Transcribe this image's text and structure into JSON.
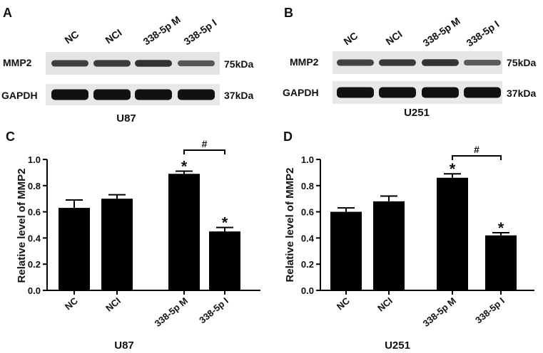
{
  "panels": {
    "a": {
      "letter": "A",
      "lanes": [
        "NC",
        "NCI",
        "338-5p M",
        "338-5p I"
      ],
      "rows": [
        {
          "protein": "MMP2",
          "size": "75kDa",
          "intensity": [
            0.62,
            0.66,
            0.72,
            0.45
          ]
        },
        {
          "protein": "GAPDH",
          "size": "37kDa",
          "intensity": [
            0.95,
            0.95,
            0.95,
            0.95
          ]
        }
      ],
      "cell_line": "U87"
    },
    "b": {
      "letter": "B",
      "lanes": [
        "NC",
        "NCI",
        "338-5p M",
        "338-5p I"
      ],
      "rows": [
        {
          "protein": "MMP2",
          "size": "75kDa",
          "intensity": [
            0.6,
            0.66,
            0.7,
            0.42
          ]
        },
        {
          "protein": "GAPDH",
          "size": "37kDa",
          "intensity": [
            0.95,
            0.95,
            0.95,
            0.95
          ]
        }
      ],
      "cell_line": "U251"
    },
    "c": {
      "letter": "C"
    },
    "d": {
      "letter": "D"
    }
  },
  "chart_data": [
    {
      "type": "bar",
      "categories": [
        "NC",
        "NCI",
        "338-5p M",
        "338-5p I"
      ],
      "values": [
        0.63,
        0.7,
        0.89,
        0.45
      ],
      "errors": [
        0.06,
        0.03,
        0.02,
        0.03
      ],
      "markers": [
        "",
        "",
        "*",
        "*"
      ],
      "bracket": {
        "from": "338-5p M",
        "to": "338-5p I",
        "label": "#"
      },
      "xlabel": "U87",
      "ylabel": "Relative level of MMP2",
      "ylim": [
        0,
        1.0
      ],
      "yticks": [
        "0.0",
        "0.2",
        "0.4",
        "0.6",
        "0.8",
        "1.0"
      ],
      "grid": false,
      "bar_color": "#000000"
    },
    {
      "type": "bar",
      "categories": [
        "NC",
        "NCI",
        "338-5p M",
        "338-5p I"
      ],
      "values": [
        0.6,
        0.68,
        0.86,
        0.42
      ],
      "errors": [
        0.03,
        0.04,
        0.03,
        0.02
      ],
      "markers": [
        "",
        "",
        "*",
        "*"
      ],
      "bracket": {
        "from": "338-5p M",
        "to": "338-5p I",
        "label": "#"
      },
      "xlabel": "U251",
      "ylabel": "Relative level of MMP2",
      "ylim": [
        0,
        1.0
      ],
      "yticks": [
        "0.0",
        "0.2",
        "0.4",
        "0.6",
        "0.8",
        "1.0"
      ],
      "grid": false,
      "bar_color": "#000000"
    }
  ]
}
